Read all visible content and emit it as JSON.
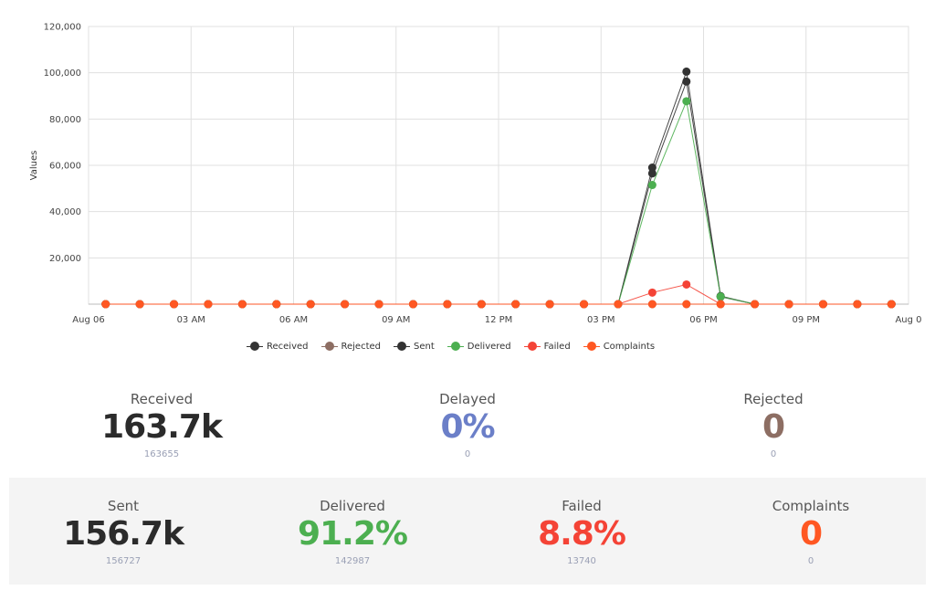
{
  "chart_data": {
    "type": "line",
    "ylabel": "Values",
    "xlabel": "",
    "ylim": [
      0,
      120000
    ],
    "xlim": [
      0.5,
      24
    ],
    "y_ticks": [
      {
        "v": 20000,
        "label": "20,000"
      },
      {
        "v": 40000,
        "label": "40,000"
      },
      {
        "v": 60000,
        "label": "60,000"
      },
      {
        "v": 80000,
        "label": "80,000"
      },
      {
        "v": 100000,
        "label": "100,000"
      },
      {
        "v": 120000,
        "label": "120,000"
      }
    ],
    "x_ticks": [
      {
        "v": 0,
        "label": "Aug 06"
      },
      {
        "v": 3,
        "label": "03 AM"
      },
      {
        "v": 6,
        "label": "06 AM"
      },
      {
        "v": 9,
        "label": "09 AM"
      },
      {
        "v": 12,
        "label": "12 PM"
      },
      {
        "v": 15,
        "label": "03 PM"
      },
      {
        "v": 18,
        "label": "06 PM"
      },
      {
        "v": 21,
        "label": "09 PM"
      },
      {
        "v": 24,
        "label": "Aug 0"
      }
    ],
    "x": [
      0.5,
      1.5,
      2.5,
      3.5,
      4.5,
      5.5,
      6.5,
      7.5,
      8.5,
      9.5,
      10.5,
      11.5,
      12.5,
      13.5,
      14.5,
      15.5,
      16.5,
      17.5,
      18.5,
      19.5,
      20.5,
      21.5,
      22.5,
      23.5
    ],
    "series": [
      {
        "name": "Received",
        "color": "#333333",
        "values": [
          0,
          0,
          0,
          0,
          0,
          0,
          0,
          0,
          0,
          0,
          0,
          0,
          0,
          0,
          0,
          0,
          59000,
          100500,
          3500,
          0,
          0,
          0,
          0,
          0
        ]
      },
      {
        "name": "Rejected",
        "color": "#8d6e63",
        "values": [
          0,
          0,
          0,
          0,
          0,
          0,
          0,
          0,
          0,
          0,
          0,
          0,
          0,
          0,
          0,
          0,
          0,
          0,
          0,
          0,
          0,
          0,
          0,
          0
        ]
      },
      {
        "name": "Sent",
        "color": "#333333",
        "values": [
          0,
          0,
          0,
          0,
          0,
          0,
          0,
          0,
          0,
          0,
          0,
          0,
          0,
          0,
          0,
          0,
          56500,
          96200,
          3200,
          0,
          0,
          0,
          0,
          0
        ]
      },
      {
        "name": "Delivered",
        "color": "#4caf50",
        "values": [
          0,
          0,
          0,
          0,
          0,
          0,
          0,
          0,
          0,
          0,
          0,
          0,
          0,
          0,
          0,
          0,
          51500,
          87700,
          3300,
          0,
          0,
          0,
          0,
          0
        ]
      },
      {
        "name": "Failed",
        "color": "#f44336",
        "values": [
          0,
          0,
          0,
          0,
          0,
          0,
          0,
          0,
          0,
          0,
          0,
          0,
          0,
          0,
          0,
          0,
          5000,
          8500,
          0,
          0,
          0,
          0,
          0,
          0
        ]
      },
      {
        "name": "Complaints",
        "color": "#ff5722",
        "values": [
          0,
          0,
          0,
          0,
          0,
          0,
          0,
          0,
          0,
          0,
          0,
          0,
          0,
          0,
          0,
          0,
          0,
          0,
          0,
          0,
          0,
          0,
          0,
          0
        ]
      }
    ],
    "grid": true,
    "legend_position": "bottom"
  },
  "stats": {
    "received": {
      "label": "Received",
      "value": "163.7k",
      "sub": "163655",
      "color": "#2b2b2b"
    },
    "delayed": {
      "label": "Delayed",
      "value": "0%",
      "sub": "0",
      "color": "#6b7fc8"
    },
    "rejected": {
      "label": "Rejected",
      "value": "0",
      "sub": "0",
      "color": "#8d6e63"
    },
    "sent": {
      "label": "Sent",
      "value": "156.7k",
      "sub": "156727",
      "color": "#2b2b2b"
    },
    "delivered": {
      "label": "Delivered",
      "value": "91.2%",
      "sub": "142987",
      "color": "#4caf50"
    },
    "failed": {
      "label": "Failed",
      "value": "8.8%",
      "sub": "13740",
      "color": "#f44336"
    },
    "complaints": {
      "label": "Complaints",
      "value": "0",
      "sub": "0",
      "color": "#ff5722"
    }
  }
}
